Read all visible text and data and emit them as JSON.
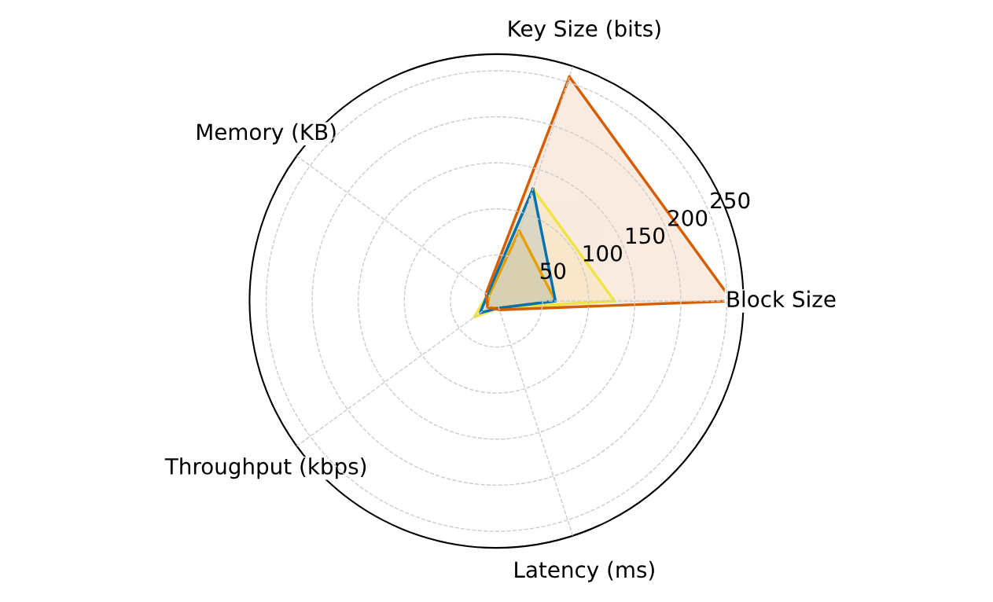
{
  "chart_data": {
    "type": "radar",
    "categories": [
      "Key Size (bits)",
      "Block Size",
      "Latency (ms)",
      "Throughput (kbps)",
      "Memory (KB)"
    ],
    "series": [
      {
        "color": "#e69f00",
        "values": [
          80,
          64,
          8,
          12,
          10
        ]
      },
      {
        "color": "#f0e442",
        "values": [
          128,
          128,
          8,
          30,
          12
        ]
      },
      {
        "color": "#0072b2",
        "values": [
          128,
          64,
          8,
          22,
          12
        ]
      },
      {
        "color": "#d55e00",
        "values": [
          256,
          256,
          10,
          12,
          14
        ]
      }
    ],
    "ylim": [
      0,
      268
    ],
    "yticks": [
      50,
      100,
      150,
      200,
      250
    ],
    "grid": true,
    "line_style": "solid",
    "marker": "none"
  }
}
